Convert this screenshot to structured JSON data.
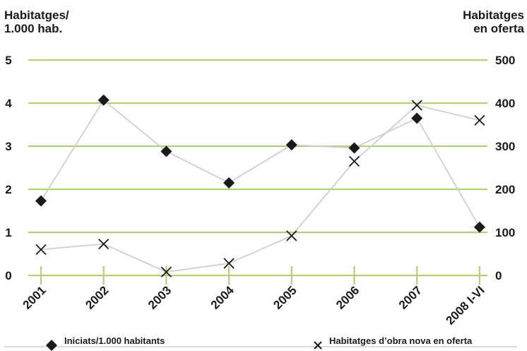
{
  "chart_data": {
    "type": "line",
    "categories": [
      "2001",
      "2002",
      "2003",
      "2004",
      "2005",
      "2006",
      "2007",
      "2008 I-VI"
    ],
    "y_left_title_lines": [
      "Habitatges/",
      "1.000 hab."
    ],
    "y_right_title_lines": [
      "Habitatges",
      "en oferta"
    ],
    "y_left_ticks": [
      0,
      1,
      2,
      3,
      4,
      5
    ],
    "y_right_ticks": [
      0,
      100,
      200,
      300,
      400,
      500
    ],
    "y_left_lim": [
      0,
      5
    ],
    "y_right_lim": [
      0,
      500
    ],
    "grid": true,
    "legend_position": "bottom",
    "series": [
      {
        "name": "Iniciats/1.000 habitants",
        "axis": "left",
        "marker": "diamond",
        "values": [
          1.73,
          4.07,
          2.88,
          2.15,
          3.03,
          2.96,
          3.65,
          1.12
        ]
      },
      {
        "name": "Habitatges d’obra nova en oferta",
        "axis": "right",
        "marker": "x",
        "values": [
          60,
          73,
          8,
          28,
          92,
          265,
          395,
          360
        ]
      }
    ],
    "colors": {
      "grid": "#b5cf78",
      "line": "#cfcfcf",
      "marker": "#1a1a1a",
      "text": "#1a1a1a"
    }
  }
}
